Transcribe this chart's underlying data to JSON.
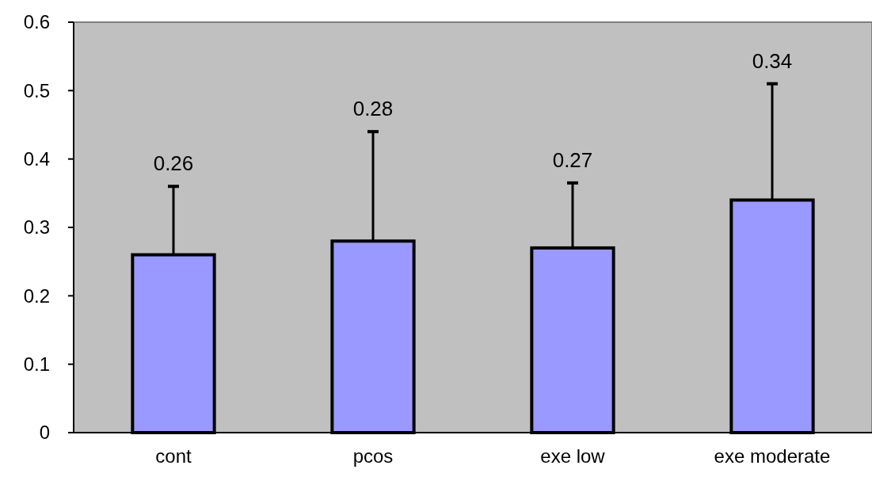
{
  "chart_data": {
    "type": "bar",
    "categories": [
      "cont",
      "pcos",
      "exe low",
      "exe moderate"
    ],
    "values": [
      0.26,
      0.28,
      0.27,
      0.34
    ],
    "errors": [
      [
        0.26,
        0.36
      ],
      [
        0.28,
        0.44
      ],
      [
        0.27,
        0.365
      ],
      [
        0.34,
        0.51
      ]
    ],
    "color": "#9999ff",
    "ylim": [
      0,
      0.6
    ],
    "yticks": [
      0,
      0.1,
      0.2,
      0.3,
      0.4,
      0.5,
      0.6
    ],
    "annotations": [
      "0.26",
      "0.28",
      "0.27",
      "0.34"
    ],
    "grid": false
  }
}
